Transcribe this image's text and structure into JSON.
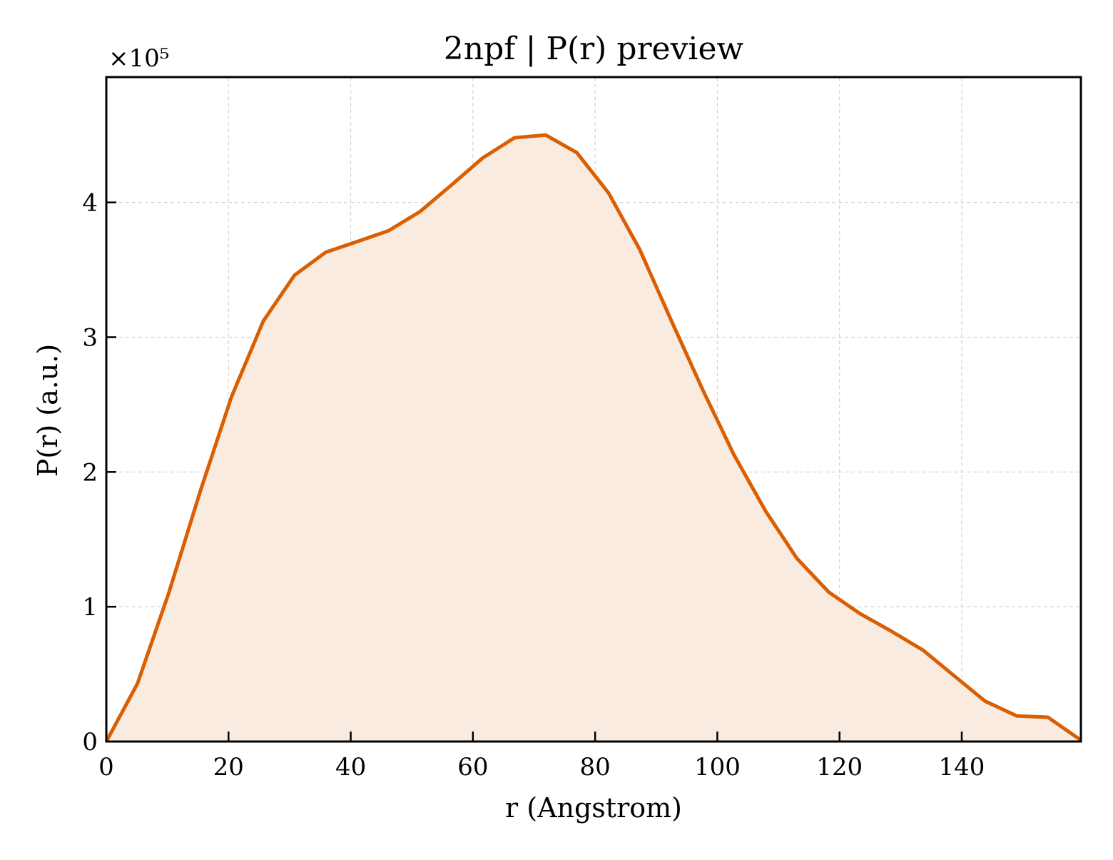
{
  "chart_data": {
    "type": "area",
    "title": "2npf | P(r) preview",
    "xlabel": "r (Angstrom)",
    "ylabel": "P(r) (a.u.)",
    "y_multiplier_label": "×10⁵",
    "y_scale_factor": 100000,
    "xlim": [
      0,
      159.5
    ],
    "ylim": [
      0,
      4.93
    ],
    "x_ticks": [
      0,
      20,
      40,
      60,
      80,
      100,
      120,
      140
    ],
    "x_tick_labels": [
      "0",
      "20",
      "40",
      "60",
      "80",
      "100",
      "120",
      "140"
    ],
    "y_ticks": [
      0,
      1,
      2,
      3,
      4
    ],
    "y_tick_labels": [
      "0",
      "1",
      "2",
      "3",
      "4"
    ],
    "grid": true,
    "legend": "none",
    "colors": {
      "line": "#d95f02",
      "fill": "#f9ebe0",
      "grid": "#d3d3d3",
      "axes": "#000000"
    },
    "series": [
      {
        "x": [
          0,
          5.1,
          10.2,
          15.4,
          20.5,
          25.7,
          30.8,
          35.9,
          41.1,
          46.2,
          51.3,
          56.5,
          61.6,
          66.8,
          71.9,
          77.0,
          82.2,
          87.3,
          92.5,
          97.6,
          102.7,
          107.9,
          113.0,
          118.2,
          123.3,
          128.4,
          133.6,
          138.7,
          143.8,
          149.0,
          154.1,
          159.5
        ],
        "y": [
          0,
          0.43,
          1.1,
          1.86,
          2.56,
          3.12,
          3.46,
          3.63,
          3.71,
          3.79,
          3.93,
          4.13,
          4.33,
          4.48,
          4.5,
          4.37,
          4.07,
          3.65,
          3.12,
          2.61,
          2.13,
          1.71,
          1.36,
          1.11,
          0.95,
          0.82,
          0.68,
          0.49,
          0.3,
          0.19,
          0.18,
          0.01
        ]
      }
    ]
  }
}
